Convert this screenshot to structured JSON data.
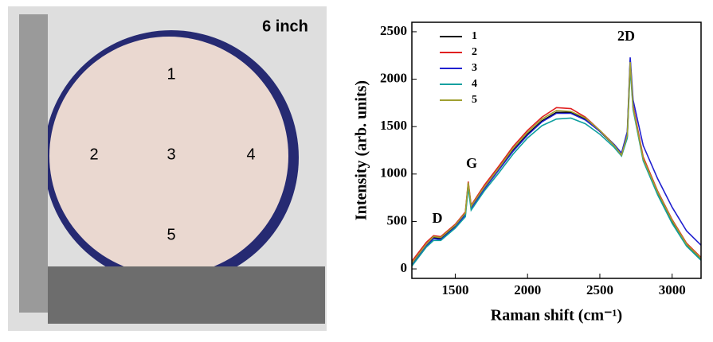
{
  "photo": {
    "label": "6 inch",
    "points": [
      "1",
      "2",
      "3",
      "4",
      "5"
    ]
  },
  "chart_data": {
    "type": "line",
    "ylabel": "Intensity (arb. units)",
    "xlabel": "Raman shift (cm⁻¹)",
    "annotations": [
      "D",
      "G",
      "2D"
    ],
    "xlim": [
      1200,
      3200
    ],
    "xticks": [
      1500,
      2000,
      2500,
      3000
    ],
    "ylim": [
      -100,
      2600
    ],
    "yticks": [
      0,
      500,
      1000,
      1500,
      2000,
      2500
    ],
    "legend": "upper left",
    "x": [
      1200,
      1300,
      1350,
      1400,
      1500,
      1570,
      1590,
      1610,
      1700,
      1800,
      1900,
      2000,
      2100,
      2200,
      2300,
      2400,
      2500,
      2600,
      2650,
      2690,
      2710,
      2730,
      2800,
      2900,
      3000,
      3100,
      3200
    ],
    "series": [
      {
        "name": "1",
        "color": "#000000",
        "values": [
          50,
          250,
          330,
          320,
          450,
          580,
          900,
          650,
          850,
          1050,
          1250,
          1420,
          1560,
          1650,
          1650,
          1580,
          1450,
          1300,
          1200,
          1400,
          2200,
          1700,
          1150,
          800,
          500,
          250,
          100
        ]
      },
      {
        "name": "2",
        "color": "#e02020",
        "values": [
          80,
          280,
          350,
          340,
          470,
          600,
          920,
          670,
          880,
          1080,
          1290,
          1460,
          1600,
          1700,
          1690,
          1600,
          1460,
          1310,
          1210,
          1420,
          2150,
          1720,
          1180,
          820,
          520,
          270,
          120
        ]
      },
      {
        "name": "3",
        "color": "#2020d0",
        "values": [
          40,
          240,
          320,
          310,
          440,
          570,
          880,
          640,
          840,
          1040,
          1240,
          1410,
          1550,
          1640,
          1640,
          1570,
          1450,
          1310,
          1220,
          1450,
          2230,
          1780,
          1300,
          950,
          650,
          400,
          250
        ]
      },
      {
        "name": "4",
        "color": "#10a0a0",
        "values": [
          30,
          230,
          300,
          300,
          430,
          550,
          860,
          620,
          820,
          1010,
          1210,
          1380,
          1510,
          1580,
          1590,
          1530,
          1420,
          1280,
          1190,
          1380,
          2120,
          1680,
          1140,
          780,
          480,
          240,
          90
        ]
      },
      {
        "name": "5",
        "color": "#a0a030",
        "values": [
          60,
          260,
          340,
          330,
          460,
          590,
          910,
          660,
          860,
          1060,
          1270,
          1440,
          1580,
          1670,
          1660,
          1590,
          1460,
          1300,
          1200,
          1410,
          2180,
          1700,
          1160,
          810,
          510,
          260,
          110
        ]
      }
    ]
  }
}
